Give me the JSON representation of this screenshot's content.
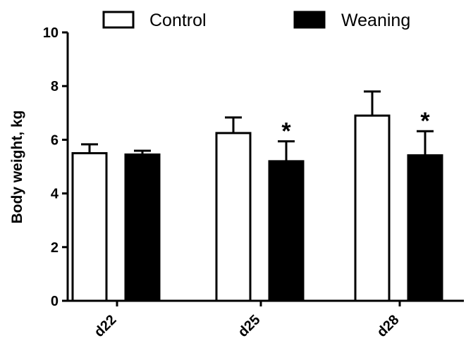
{
  "chart_data": {
    "type": "bar",
    "categories": [
      "d22",
      "d25",
      "d28"
    ],
    "series": [
      {
        "name": "Control",
        "values": [
          5.5,
          6.25,
          6.9
        ],
        "errors": [
          0.33,
          0.58,
          0.9
        ],
        "fill": "#ffffff",
        "significant": [
          false,
          false,
          false
        ]
      },
      {
        "name": "Weaning",
        "values": [
          5.45,
          5.2,
          5.42
        ],
        "errors": [
          0.14,
          0.74,
          0.9
        ],
        "fill": "#000000",
        "significant": [
          false,
          true,
          true
        ]
      }
    ],
    "significance_marker": "*",
    "ylabel": "Body weight, kg",
    "xlabel": "",
    "ylim": [
      0,
      10
    ],
    "yticks": [
      "0",
      "2",
      "4",
      "6",
      "8",
      "10"
    ],
    "grid": false,
    "legend_position": "top",
    "colors": {
      "axis": "#000000",
      "bar_outline": "#000000"
    }
  }
}
